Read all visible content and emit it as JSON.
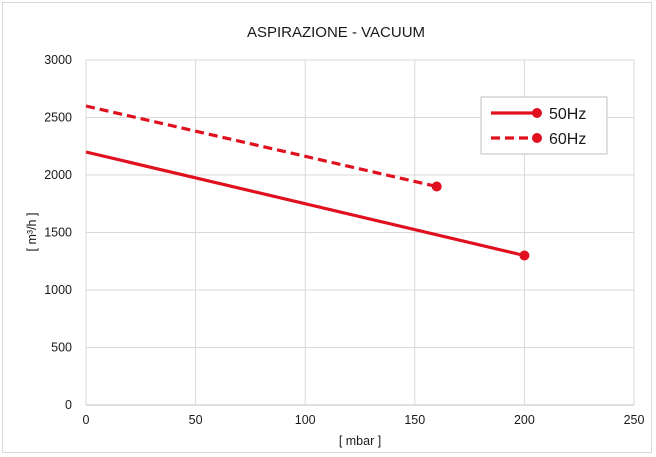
{
  "colors": {
    "series": "#e0101f",
    "grid": "#d9d9d9",
    "axis": "#bfbfbf"
  },
  "chart_data": {
    "type": "line",
    "title": "ASPIRAZIONE - VACUUM",
    "xlabel": "[ mbar ]",
    "ylabel": "[ m³/h ]",
    "xlim": [
      0,
      250
    ],
    "ylim": [
      0,
      3000
    ],
    "xticks": [
      "0",
      "50",
      "100",
      "150",
      "200",
      "250"
    ],
    "yticks": [
      "0",
      "500",
      "1000",
      "1500",
      "2000",
      "2500",
      "3000"
    ],
    "grid": true,
    "legend_position": "top-right",
    "series": [
      {
        "name": "50Hz",
        "style": "solid",
        "points": [
          {
            "x": 0,
            "y": 2200
          },
          {
            "x": 200,
            "y": 1300
          }
        ]
      },
      {
        "name": "60Hz",
        "style": "dashed",
        "points": [
          {
            "x": 0,
            "y": 2600
          },
          {
            "x": 160,
            "y": 1900
          }
        ]
      }
    ]
  }
}
